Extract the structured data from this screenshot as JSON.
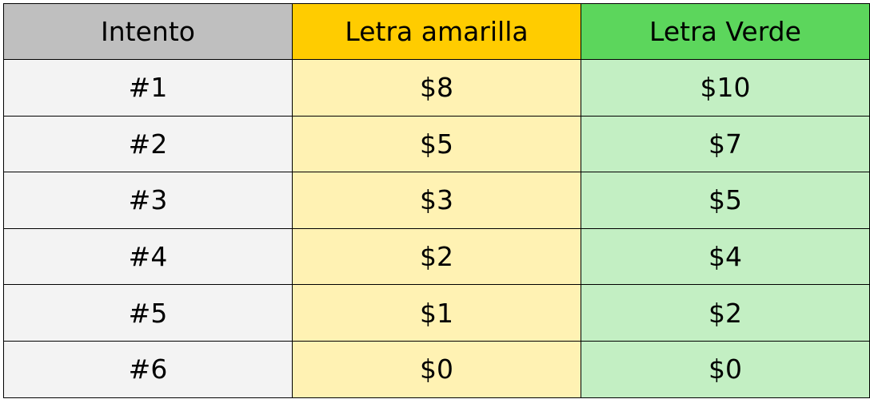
{
  "table": {
    "headers": [
      "Intento",
      "Letra amarilla",
      "Letra Verde"
    ],
    "rows": [
      [
        "#1",
        "$8",
        "$10"
      ],
      [
        "#2",
        "$5",
        "$7"
      ],
      [
        "#3",
        "$3",
        "$5"
      ],
      [
        "#4",
        "$2",
        "$4"
      ],
      [
        "#5",
        "$1",
        "$2"
      ],
      [
        "#6",
        "$0",
        "$0"
      ]
    ]
  },
  "colors": {
    "header_intento": "#bfbfbf",
    "header_amarilla": "#ffcc00",
    "header_verde": "#5cd65c",
    "cell_intento": "#f3f3f3",
    "cell_amarilla": "#fff2b3",
    "cell_verde": "#c3efc3"
  }
}
